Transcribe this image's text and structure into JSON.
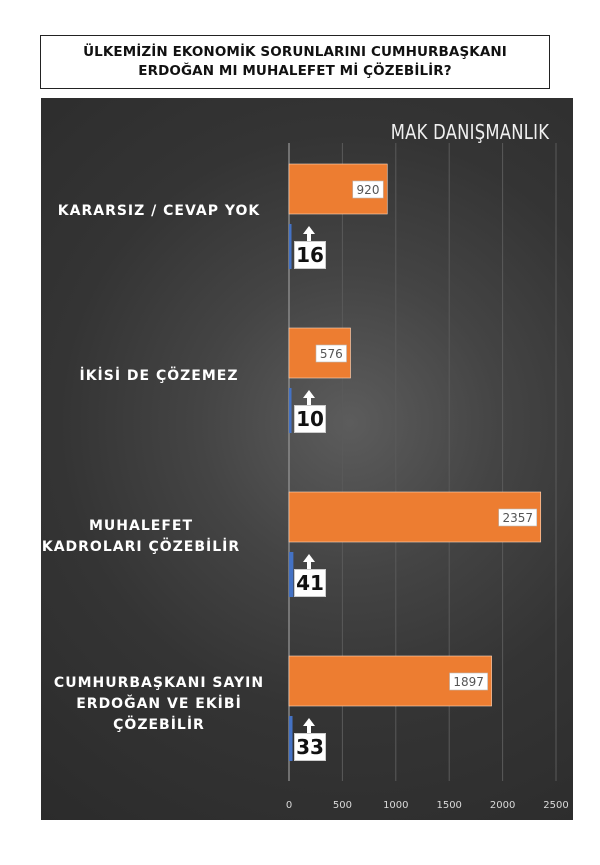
{
  "title": {
    "line1": "ÜLKEMİZİN EKONOMİK SORUNLARINI CUMHURBAŞKANI",
    "line2": "ERDOĞAN MI MUHALEFET Mİ ÇÖZEBİLİR?"
  },
  "watermark": "MAK DANIŞMANLIK",
  "chart_data": {
    "type": "bar",
    "orientation": "horizontal",
    "categories": [
      "KARARSIZ / CEVAP YOK",
      "İKİSİ DE ÇÖZEMEZ",
      "MUHALEFET KADROLARI ÇÖZEBİLİR",
      "CUMHURBAŞKANI SAYIN ERDOĞAN VE EKİBİ ÇÖZEBİLİR"
    ],
    "series": [
      {
        "values": [
          920,
          576,
          2357,
          1897
        ],
        "color": "#ed7d31"
      },
      {
        "values": [
          16,
          10,
          41,
          33
        ],
        "color": "#4472c4"
      }
    ],
    "xlim": [
      0,
      2500
    ],
    "xticks": [
      0,
      500,
      1000,
      1500,
      2000,
      2500
    ],
    "grid": true,
    "colors": {
      "background": "#3a3a3a",
      "grid": "#5a5a5a",
      "tick_text": "#d9d9d9"
    }
  }
}
